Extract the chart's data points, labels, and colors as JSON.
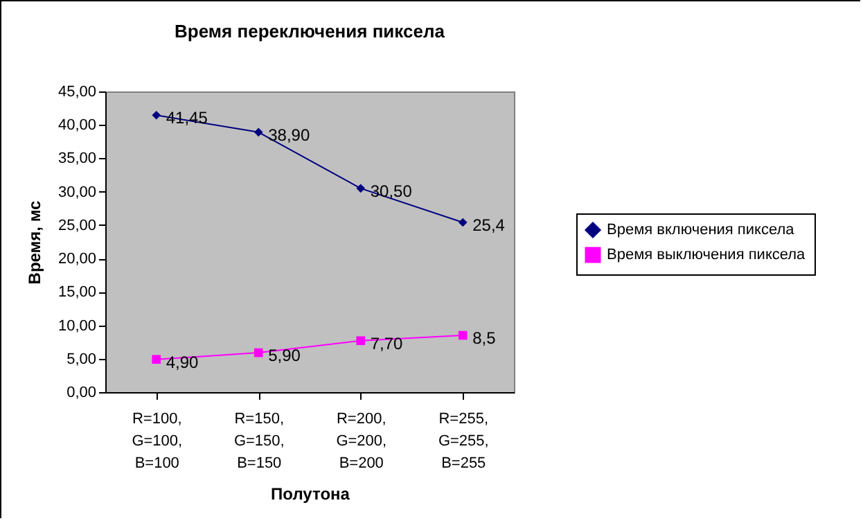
{
  "chart_data": {
    "type": "line",
    "title": "Время переключения пиксела",
    "xlabel": "Полутона",
    "ylabel": "Время, мс",
    "categories": [
      "R=100, G=100, B=100",
      "R=150, G=150, B=150",
      "R=200, G=200, B=200",
      "R=255, G=255, B=255"
    ],
    "series": [
      {
        "name": "Время включения пиксела",
        "color": "#000080",
        "marker": "diamond",
        "values": [
          41.45,
          38.9,
          30.5,
          25.4
        ],
        "value_labels": [
          "41,45",
          "38,90",
          "30,50",
          "25,4"
        ]
      },
      {
        "name": "Время выключения пиксела",
        "color": "#ff00ff",
        "marker": "square",
        "values": [
          4.9,
          5.9,
          7.7,
          8.5
        ],
        "value_labels": [
          "4,90",
          "5,90",
          "7,70",
          "8,5"
        ]
      }
    ],
    "ylim": [
      0,
      45
    ],
    "yticks": [
      {
        "value": 0,
        "label": "0,00"
      },
      {
        "value": 5,
        "label": "5,00"
      },
      {
        "value": 10,
        "label": "10,00"
      },
      {
        "value": 15,
        "label": "15,00"
      },
      {
        "value": 20,
        "label": "20,00"
      },
      {
        "value": 25,
        "label": "25,00"
      },
      {
        "value": 30,
        "label": "30,00"
      },
      {
        "value": 35,
        "label": "35,00"
      },
      {
        "value": 40,
        "label": "40,00"
      },
      {
        "value": 45,
        "label": "45,00"
      }
    ],
    "legend": "right"
  }
}
